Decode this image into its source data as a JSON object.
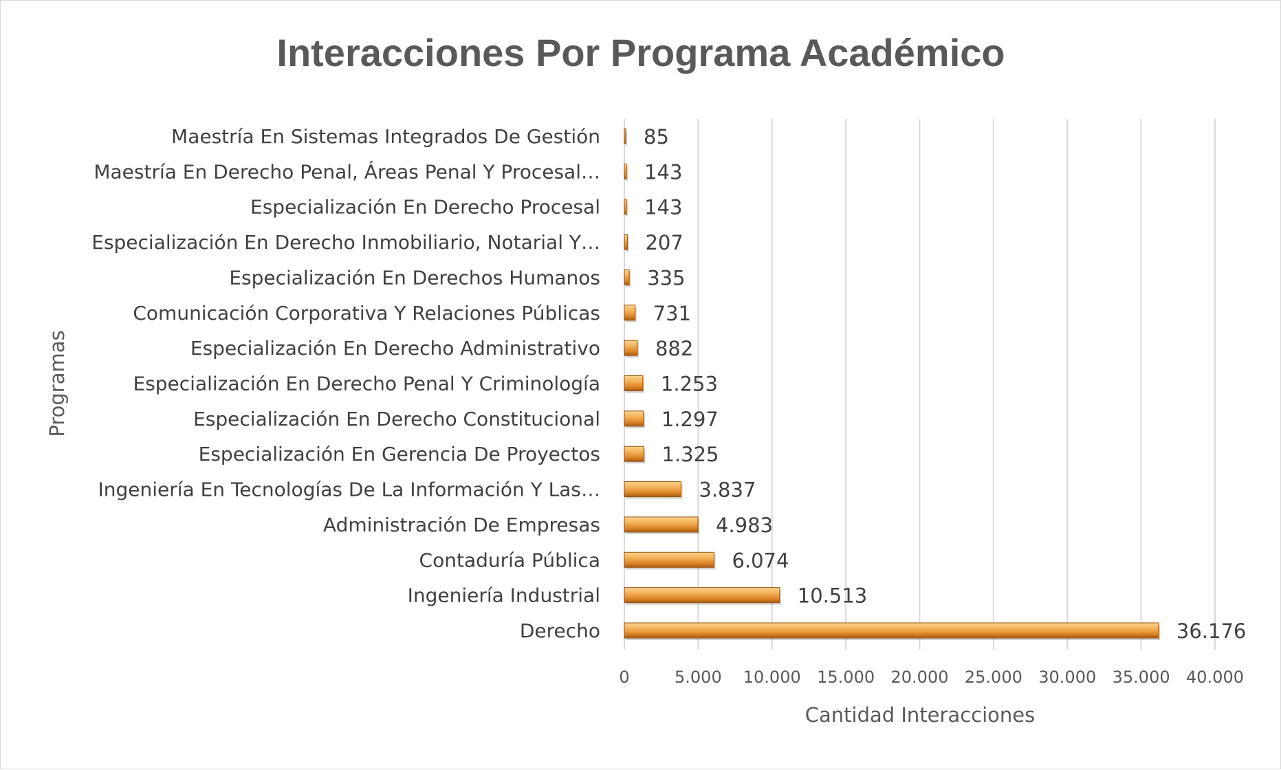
{
  "chart_data": {
    "type": "bar",
    "orientation": "horizontal",
    "title": "Interacciones Por Programa Académico",
    "xlabel": "Cantidad Interacciones",
    "ylabel": "Programas",
    "xlim": [
      0,
      40000
    ],
    "tick_step": 5000,
    "tick_labels": [
      "0",
      "5.000",
      "10.000",
      "15.000",
      "20.000",
      "25.000",
      "30.000",
      "35.000",
      "40.000"
    ],
    "grid": "vertical",
    "legend": "none",
    "bar_color": "#E79A3C",
    "categories": [
      "Maestría En Sistemas Integrados De Gestión",
      "Maestría En Derecho Penal, Áreas Penal Y Procesal…",
      "Especialización En Derecho Procesal",
      "Especialización En Derecho Inmobiliario, Notarial Y…",
      "Especialización En Derechos Humanos",
      "Comunicación Corporativa Y Relaciones Públicas",
      "Especialización En Derecho Administrativo",
      "Especialización En Derecho Penal Y Criminología",
      "Especialización En Derecho Constitucional",
      "Especialización En Gerencia De Proyectos",
      "Ingeniería En Tecnologías De La Información Y Las…",
      "Administración De Empresas",
      "Contaduría Pública",
      "Ingeniería Industrial",
      "Derecho"
    ],
    "values": [
      85,
      143,
      143,
      207,
      335,
      731,
      882,
      1253,
      1297,
      1325,
      3837,
      4983,
      6074,
      10513,
      36176
    ],
    "value_labels": [
      "85",
      "143",
      "143",
      "207",
      "335",
      "731",
      "882",
      "1.253",
      "1.297",
      "1.325",
      "3.837",
      "4.983",
      "6.074",
      "10.513",
      "36.176"
    ]
  }
}
